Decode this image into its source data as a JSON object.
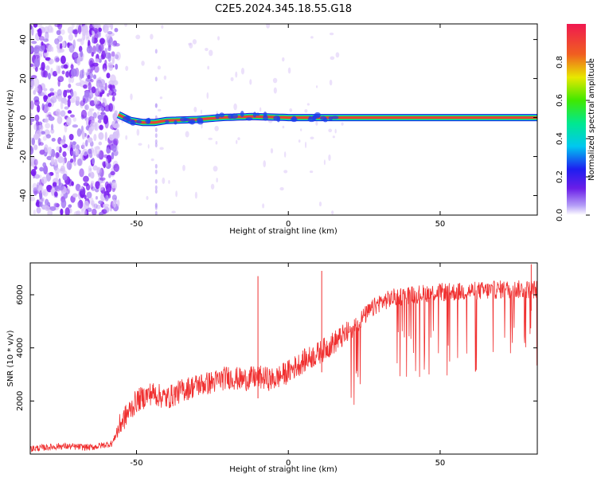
{
  "title": "C2E5.2024.345.18.55.G18",
  "colors": {
    "snr_line": "#f03030",
    "ridge": "#e8403a",
    "noise_dark": "#7a1cf0",
    "noise_light": "#d9c4f8"
  },
  "chart_data": [
    {
      "type": "heatmap",
      "title": "C2E5.2024.345.18.55.G18",
      "xlabel": "Height of straight line (km)",
      "ylabel": "Frequency (Hz)",
      "xlim": [
        -85,
        82
      ],
      "ylim": [
        -50,
        48
      ],
      "xticks": [
        "-50",
        "0",
        "50"
      ],
      "xtick_values": [
        -50,
        0,
        50
      ],
      "yticks": [
        "-40",
        "-20",
        "0",
        "20",
        "40"
      ],
      "ytick_values": [
        -40,
        -20,
        0,
        20,
        40
      ],
      "colorbar": {
        "label": "Normalized spectral amplitude",
        "ticks": [
          "0.0",
          "0.2",
          "0.4",
          "0.6",
          "0.8"
        ],
        "tick_values": [
          0.0,
          0.2,
          0.4,
          0.6,
          0.8
        ],
        "range": [
          0,
          1
        ]
      },
      "noise_region_x": [
        -85,
        -56
      ],
      "ridge_start_x": -56,
      "ridge_points": [
        {
          "x": -56,
          "y": 1.5
        },
        {
          "x": -52,
          "y": -1.5
        },
        {
          "x": -48,
          "y": -2.5
        },
        {
          "x": -44,
          "y": -2.5
        },
        {
          "x": -40,
          "y": -1.5
        },
        {
          "x": -30,
          "y": -1.0
        },
        {
          "x": -22,
          "y": 0.0
        },
        {
          "x": -12,
          "y": 0.5
        },
        {
          "x": 0,
          "y": 0.0
        },
        {
          "x": 20,
          "y": 0.0
        },
        {
          "x": 82,
          "y": 0.0
        }
      ]
    },
    {
      "type": "line",
      "xlabel": "Height of straight line (km)",
      "ylabel": "SNR (10 * v/v)",
      "xlim": [
        -85,
        82
      ],
      "ylim": [
        0,
        7200
      ],
      "xticks": [
        "-50",
        "0",
        "50"
      ],
      "xtick_values": [
        -50,
        0,
        50
      ],
      "yticks": [
        "2000",
        "4000",
        "6000"
      ],
      "ytick_values": [
        2000,
        4000,
        6000
      ],
      "series": [
        {
          "x": [
            -85,
            -75,
            -65,
            -58,
            -55,
            -50,
            -45,
            -40,
            -35,
            -30,
            -25,
            -20,
            -15,
            -10,
            -5,
            0,
            5,
            10,
            15,
            20,
            25,
            30,
            35,
            40,
            45,
            50,
            55,
            60,
            65,
            70,
            75,
            82
          ],
          "values": [
            200,
            300,
            250,
            400,
            1200,
            2000,
            2300,
            2100,
            2400,
            2600,
            2700,
            2900,
            2800,
            2900,
            2800,
            3100,
            3500,
            3800,
            4200,
            4600,
            5200,
            5700,
            5900,
            6000,
            6050,
            6100,
            6100,
            6150,
            6150,
            6200,
            6200,
            6200
          ]
        }
      ],
      "spikes": [
        {
          "x": -10,
          "y": 6700
        },
        {
          "x": 11,
          "y": 6900
        },
        {
          "x": 80,
          "y": 7150
        }
      ]
    }
  ]
}
